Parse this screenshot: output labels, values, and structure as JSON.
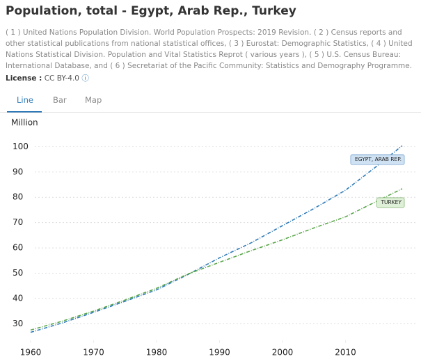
{
  "header": {
    "title": "Population, total - Egypt, Arab Rep., Turkey",
    "source": "( 1 ) United Nations Population Division. World Population Prospects: 2019 Revision. ( 2 ) Census reports and other statistical publications from national statistical offices, ( 3 ) Eurostat: Demographic Statistics, ( 4 ) United Nations Statistical Division. Population and Vital Statistics Reprot ( various years ), ( 5 ) U.S. Census Bureau: International Database, and ( 6 ) Secretariat of the Pacific Community: Statistics and Demography Programme.",
    "license_label": "License :",
    "license": "CC BY-4.0"
  },
  "tabs": [
    "Line",
    "Bar",
    "Map"
  ],
  "chart_data": {
    "type": "line",
    "ylabel": "Million",
    "x": [
      1960,
      1965,
      1970,
      1975,
      1980,
      1985,
      1990,
      1995,
      2000,
      2005,
      2010,
      2015,
      2019
    ],
    "series": [
      {
        "name": "EGYPT, ARAB REP.",
        "color": "#2e7ab8",
        "values": [
          26.6,
          30.3,
          34.5,
          38.9,
          43.4,
          49.5,
          56.1,
          62.0,
          68.8,
          75.6,
          82.8,
          92.4,
          100.4
        ]
      },
      {
        "name": "TURKEY",
        "color": "#5aa64a",
        "values": [
          27.5,
          31.0,
          35.0,
          39.4,
          44.0,
          49.7,
          54.3,
          58.9,
          63.2,
          67.9,
          72.3,
          78.5,
          83.4
        ]
      }
    ],
    "xlim": [
      1960,
      2019
    ],
    "xticks": [
      1960,
      1970,
      1980,
      1990,
      2000,
      2010
    ],
    "ylim": [
      23.5,
      104.5
    ],
    "yticks": [
      30,
      40,
      50,
      60,
      70,
      80,
      90,
      100
    ],
    "grid": true
  }
}
